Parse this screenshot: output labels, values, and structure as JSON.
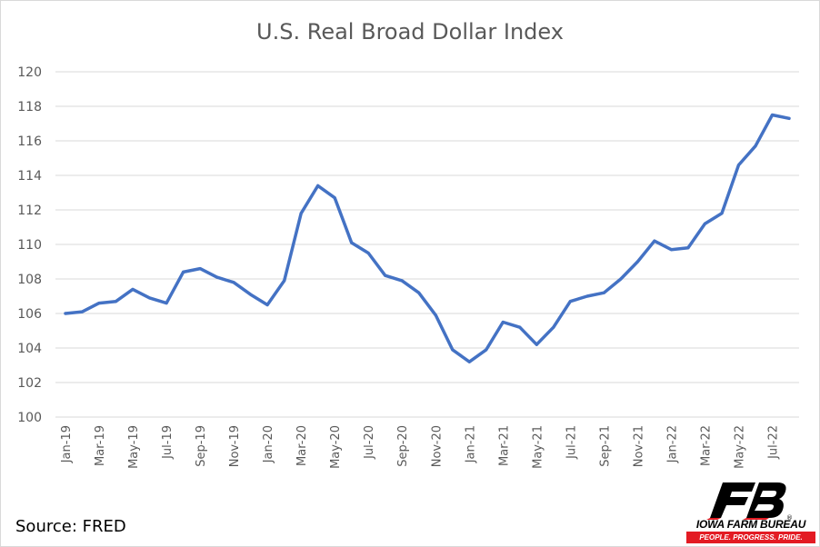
{
  "chart_data": {
    "type": "line",
    "title": "U.S. Real Broad Dollar Index",
    "xlabel": "",
    "ylabel": "",
    "ylim": [
      100,
      120
    ],
    "yticks": [
      100,
      102,
      104,
      106,
      108,
      110,
      112,
      114,
      116,
      118,
      120
    ],
    "grid": true,
    "x": [
      "Jan-19",
      "Feb-19",
      "Mar-19",
      "Apr-19",
      "May-19",
      "Jun-19",
      "Jul-19",
      "Aug-19",
      "Sep-19",
      "Oct-19",
      "Nov-19",
      "Dec-19",
      "Jan-20",
      "Feb-20",
      "Mar-20",
      "Apr-20",
      "May-20",
      "Jun-20",
      "Jul-20",
      "Aug-20",
      "Sep-20",
      "Oct-20",
      "Nov-20",
      "Dec-20",
      "Jan-21",
      "Feb-21",
      "Mar-21",
      "Apr-21",
      "May-21",
      "Jun-21",
      "Jul-21",
      "Aug-21",
      "Sep-21",
      "Oct-21",
      "Nov-21",
      "Dec-21",
      "Jan-22",
      "Feb-22",
      "Mar-22",
      "Apr-22",
      "May-22",
      "Jun-22",
      "Jul-22",
      "Aug-22"
    ],
    "x_tick_labels": [
      "Jan-19",
      "Mar-19",
      "May-19",
      "Jul-19",
      "Sep-19",
      "Nov-19",
      "Jan-20",
      "Mar-20",
      "May-20",
      "Jul-20",
      "Sep-20",
      "Nov-20",
      "Jan-21",
      "Mar-21",
      "May-21",
      "Jul-21",
      "Sep-21",
      "Nov-21",
      "Jan-22",
      "Mar-22",
      "May-22",
      "Jul-22"
    ],
    "series": [
      {
        "color": "#4472c4",
        "values": [
          106.0,
          106.1,
          106.6,
          106.7,
          107.4,
          106.9,
          106.6,
          108.4,
          108.6,
          108.1,
          107.8,
          107.1,
          106.5,
          107.9,
          111.8,
          113.4,
          112.7,
          110.1,
          109.5,
          108.2,
          107.9,
          107.2,
          105.9,
          103.9,
          103.2,
          103.9,
          105.5,
          105.2,
          104.2,
          105.2,
          106.7,
          107.0,
          107.2,
          108.0,
          109.0,
          110.2,
          109.7,
          109.8,
          111.2,
          111.8,
          114.6,
          115.7,
          117.5,
          117.3
        ]
      }
    ]
  },
  "source_text": "Source: FRED",
  "logo": {
    "name": "IOWA FARM BUREAU",
    "tagline": "PEOPLE. PROGRESS. PRIDE.",
    "registered": "®",
    "color_red": "#e31b23",
    "color_black": "#000000"
  }
}
